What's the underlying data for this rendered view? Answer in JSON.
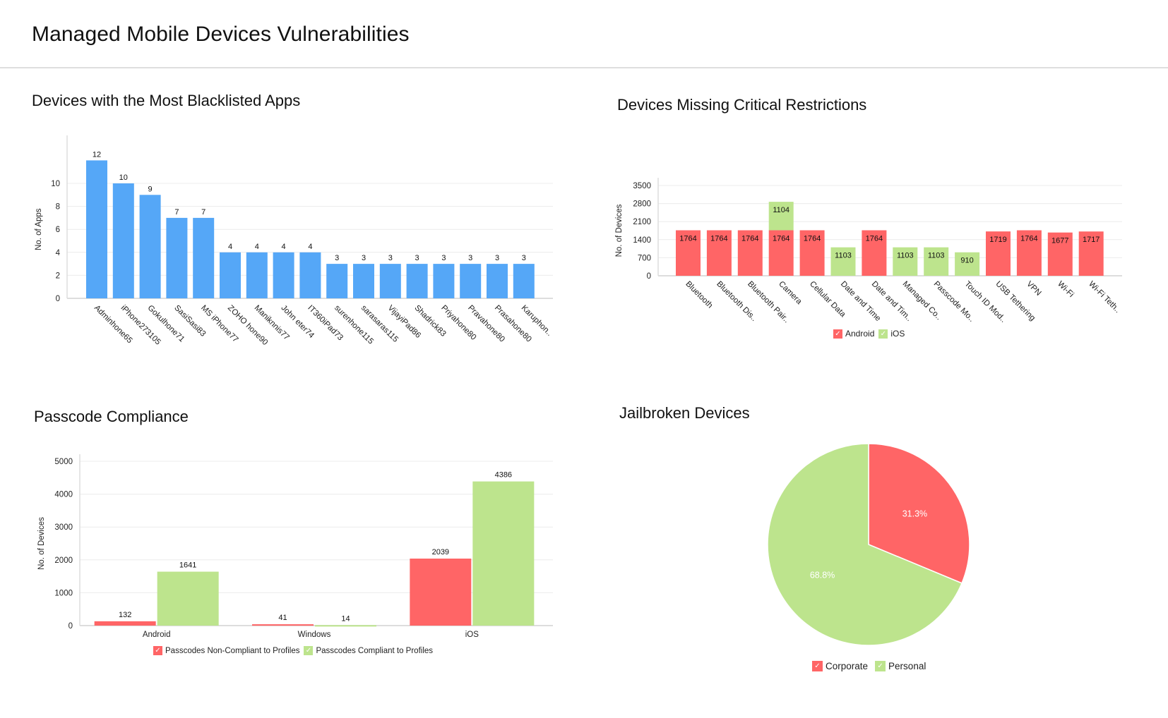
{
  "page": {
    "title": "Managed Mobile Devices Vulnerabilities"
  },
  "colors": {
    "blue": "#55a7f7",
    "red": "#ff6566",
    "green": "#bde48d",
    "grid": "#ececec",
    "axis": "#dddddd"
  },
  "legend_icons": {
    "check": "✓"
  },
  "chart_data": [
    {
      "id": "blacklisted",
      "type": "bar",
      "title": "Devices with the Most Blacklisted Apps",
      "xlabel": "",
      "ylabel": "No. of Apps",
      "ylim": [
        0,
        12
      ],
      "yticks": [
        "0",
        "2",
        "4",
        "6",
        "8",
        "10"
      ],
      "grid": true,
      "categories": [
        "Adminhone65",
        "iPhone273105",
        "Gokulhone71",
        "SasiSasi83",
        "MS iPhone77",
        "ZOHO hone90",
        "Maniknnis77",
        "John eter74",
        "IT360iPad73",
        "surenhone115",
        "sarasaras115",
        "VijayiPad86",
        "Shadrick83",
        "Priyahone80",
        "Pravahone80",
        "Prasahone80",
        "Karuphon.."
      ],
      "values": [
        12,
        10,
        9,
        7,
        7,
        4,
        4,
        4,
        4,
        3,
        3,
        3,
        3,
        3,
        3,
        3,
        3
      ],
      "data_labels": [
        "12",
        "10",
        "9",
        "7",
        "7",
        "4",
        "4",
        "4",
        "4",
        "3",
        "3",
        "3",
        "3",
        "3",
        "3",
        "3",
        "3"
      ],
      "color": "#55a7f7"
    },
    {
      "id": "restrictions",
      "type": "bar",
      "stacked": true,
      "title": "Devices Missing Critical Restrictions",
      "xlabel": "",
      "ylabel": "No. of Devices",
      "ylim": [
        0,
        3500
      ],
      "yticks": [
        "0",
        "700",
        "1400",
        "2100",
        "2800",
        "3500"
      ],
      "grid": true,
      "legend_position": "bottom",
      "categories": [
        "Bluetooth",
        "Bluetooth Dis..",
        "Bluetooth Pair..",
        "Camera",
        "Cellular Data",
        "Date and Time",
        "Date and Tim..",
        "Managed Co..",
        "Passcode Mo..",
        "Touch ID Mod..",
        "USB Tethering",
        "VPN",
        "Wi-Fi",
        "Wi-Fi Teth.."
      ],
      "series": [
        {
          "name": "Android",
          "color": "#ff6566",
          "values": [
            1764,
            1764,
            1764,
            1764,
            1764,
            0,
            1764,
            0,
            0,
            0,
            1719,
            1764,
            1677,
            1717
          ]
        },
        {
          "name": "iOS",
          "color": "#bde48d",
          "values": [
            0,
            0,
            0,
            1104,
            0,
            1103,
            0,
            1103,
            1103,
            910,
            0,
            0,
            0,
            0
          ]
        }
      ]
    },
    {
      "id": "passcode",
      "type": "bar",
      "grouped": true,
      "title": "Passcode Compliance",
      "xlabel": "",
      "ylabel": "No. of Devices",
      "ylim": [
        0,
        5000
      ],
      "yticks": [
        "0",
        "1000",
        "2000",
        "3000",
        "4000",
        "5000"
      ],
      "grid": true,
      "legend_position": "bottom",
      "categories": [
        "Android",
        "Windows",
        "iOS"
      ],
      "series": [
        {
          "name": "Passcodes Non-Compliant to Profiles",
          "color": "#ff6566",
          "values": [
            132,
            41,
            2039
          ]
        },
        {
          "name": "Passcodes Compliant to Profiles",
          "color": "#bde48d",
          "values": [
            1641,
            14,
            4386
          ]
        }
      ]
    },
    {
      "id": "jailbroken",
      "type": "pie",
      "title": "Jailbroken Devices",
      "legend_position": "bottom",
      "slices": [
        {
          "name": "Corporate",
          "value": 31.3,
          "label": "31.3%",
          "color": "#ff6566"
        },
        {
          "name": "Personal",
          "value": 68.8,
          "label": "68.8%",
          "color": "#bde48d"
        }
      ]
    }
  ]
}
